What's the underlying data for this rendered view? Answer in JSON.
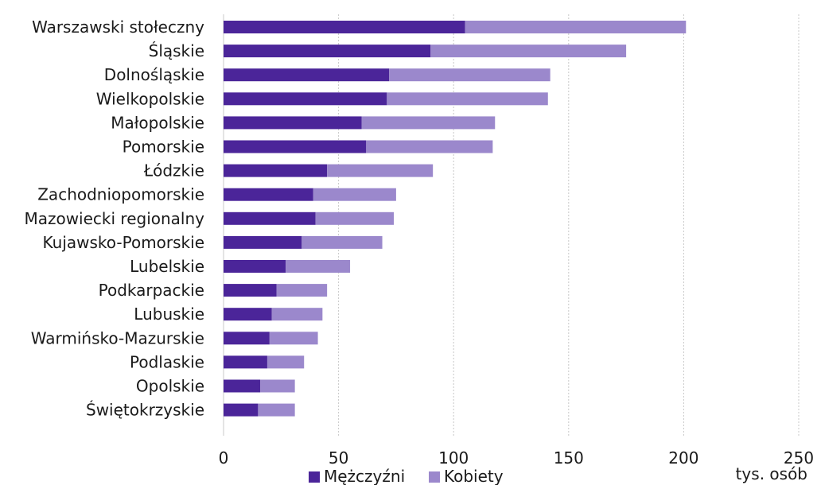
{
  "chart_data": {
    "type": "bar",
    "orientation": "horizontal",
    "stacked": true,
    "categories": [
      "Warszawski stołeczny",
      "Śląskie",
      "Dolnośląskie",
      "Wielkopolskie",
      "Małopolskie",
      "Pomorskie",
      "Łódzkie",
      "Zachodniopomorskie",
      "Mazowiecki regionalny",
      "Kujawsko-Pomorskie",
      "Lubelskie",
      "Podkarpackie",
      "Lubuskie",
      "Warmińsko-Mazurskie",
      "Podlaskie",
      "Opolskie",
      "Świętokrzyskie"
    ],
    "series": [
      {
        "name": "Mężczyźni",
        "color": "#4b2599",
        "values": [
          105,
          90,
          72,
          71,
          60,
          62,
          45,
          39,
          40,
          34,
          27,
          23,
          21,
          20,
          19,
          16,
          15
        ]
      },
      {
        "name": "Kobiety",
        "color": "#9b88cc",
        "values": [
          96,
          85,
          70,
          70,
          58,
          55,
          46,
          36,
          34,
          35,
          28,
          22,
          22,
          21,
          16,
          15,
          16
        ]
      }
    ],
    "xlim": [
      0,
      250
    ],
    "xticks": [
      0,
      50,
      100,
      150,
      200,
      250
    ],
    "unit_label": "tys. osób",
    "grid": "vertical",
    "legend": "bottom"
  }
}
